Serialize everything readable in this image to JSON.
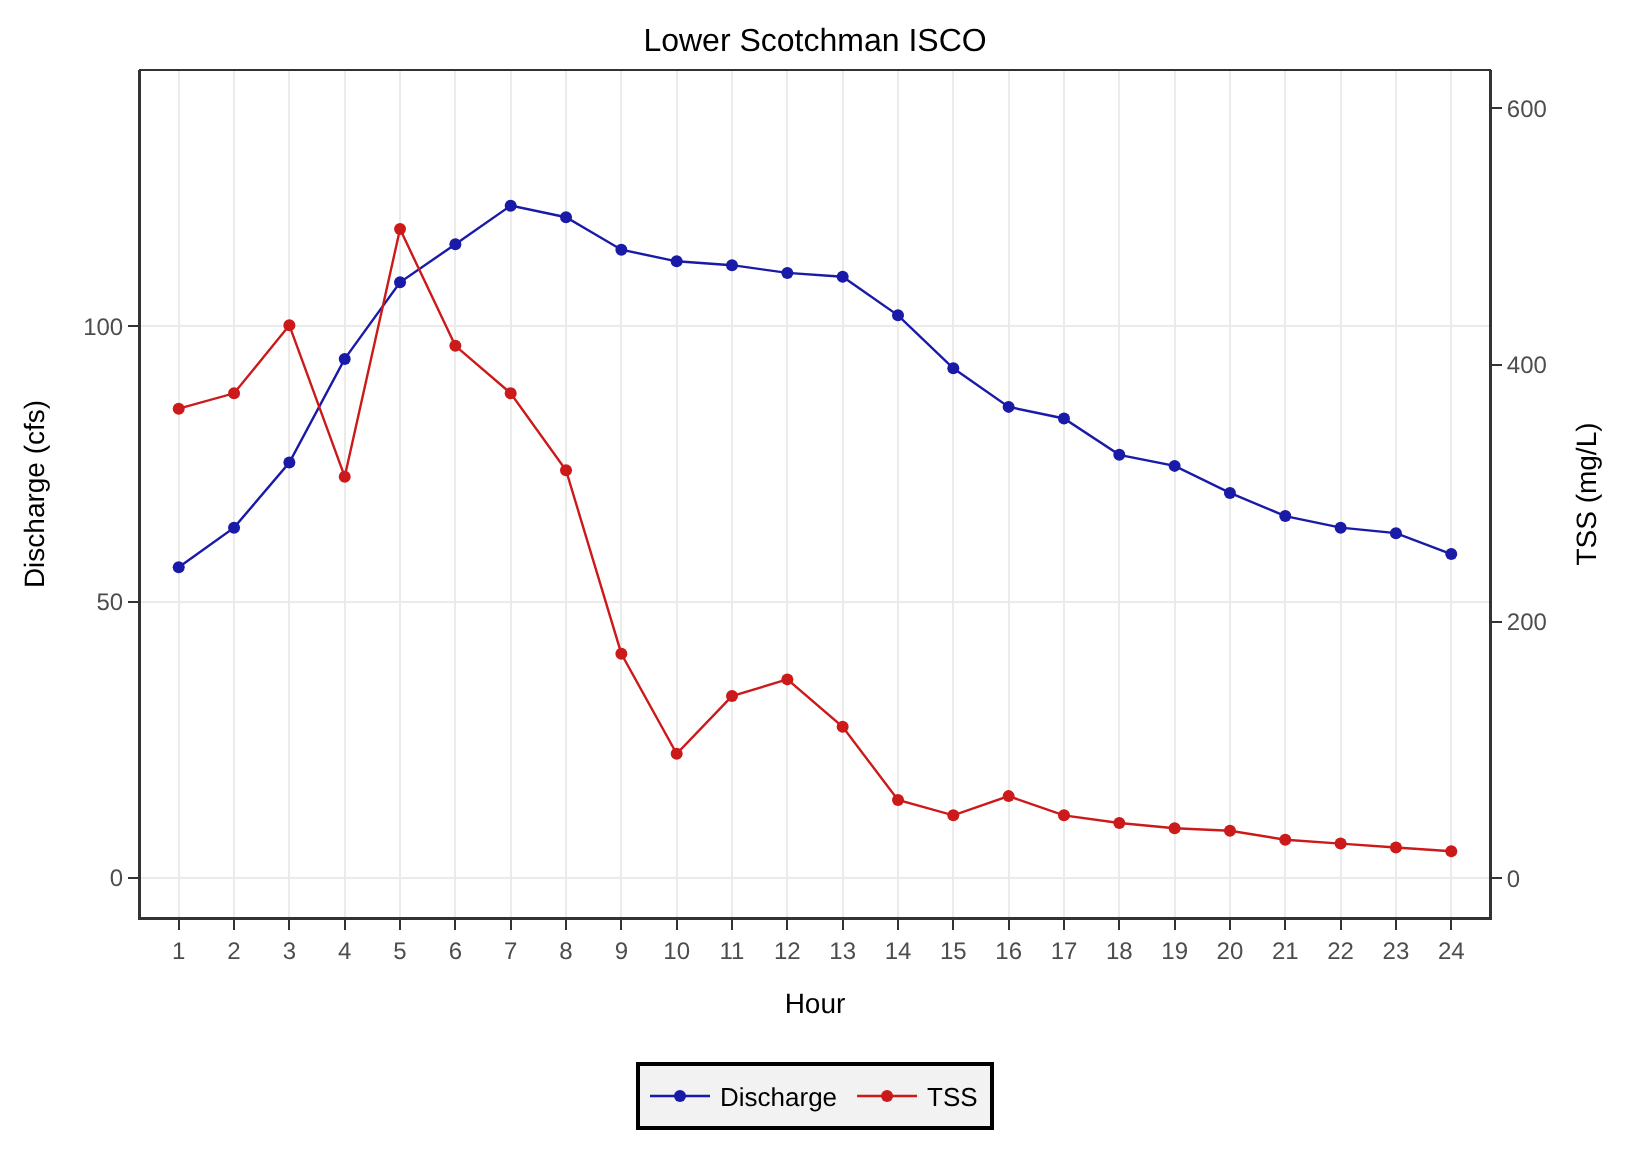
{
  "chart_data": {
    "type": "line",
    "title": "Lower Scotchman ISCO",
    "xlabel": "Hour",
    "ylabel": "Discharge (cfs)",
    "y2label": "TSS (mg/L)",
    "x": [
      1,
      2,
      3,
      4,
      5,
      6,
      7,
      8,
      9,
      10,
      11,
      12,
      13,
      14,
      15,
      16,
      17,
      18,
      19,
      20,
      21,
      22,
      23,
      24
    ],
    "series": [
      {
        "name": "Discharge",
        "color": "#1a1aa8",
        "values": [
          56.3,
          63.5,
          75.3,
          94.1,
          108,
          114.9,
          121.9,
          119.8,
          113.9,
          111.8,
          111.1,
          109.7,
          109,
          102,
          92.4,
          85.4,
          83.3,
          76.7,
          74.7,
          69.8,
          65.6,
          63.5,
          62.5,
          58.7
        ]
      },
      {
        "name": "TSS",
        "color": "#cc1a1a",
        "axis": "y2",
        "values": [
          366,
          378,
          431,
          313,
          506,
          415,
          378,
          318,
          175,
          97,
          142,
          155,
          118,
          61,
          49,
          64,
          49,
          43,
          39,
          37,
          30,
          27,
          24,
          21
        ]
      }
    ],
    "xlim": [
      0.3,
      24.7
    ],
    "xticks": [
      1,
      2,
      3,
      4,
      5,
      6,
      7,
      8,
      9,
      10,
      11,
      12,
      13,
      14,
      15,
      16,
      17,
      18,
      19,
      20,
      21,
      22,
      23,
      24
    ],
    "ylim": [
      -7.3,
      146.5
    ],
    "yticks": [
      0,
      50,
      100
    ],
    "y2lim": [
      -31,
      630
    ],
    "y2ticks": [
      0,
      200,
      400,
      600
    ],
    "grid": true,
    "legend": "bottom",
    "marker": "circle",
    "line_style": "solid"
  }
}
